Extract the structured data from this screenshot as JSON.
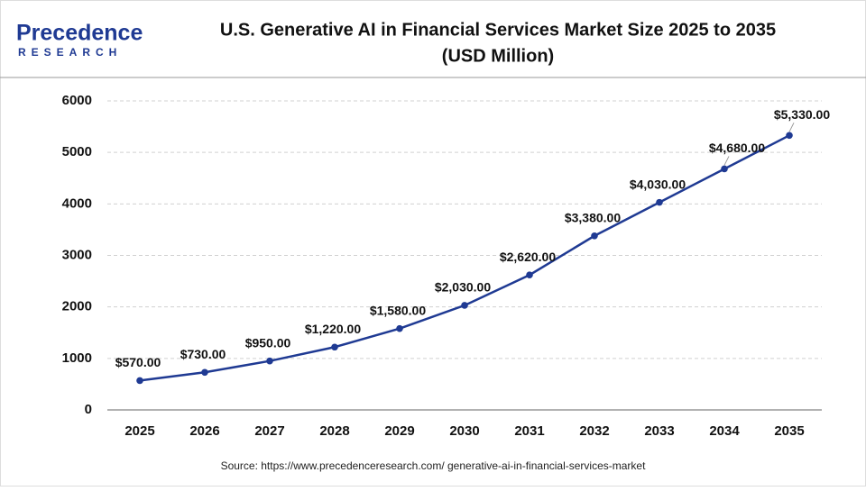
{
  "logo": {
    "name": "Precedence",
    "sub": "RESEARCH"
  },
  "chart_data": {
    "type": "line",
    "title": "U.S. Generative AI in Financial Services Market Size 2025 to 2035",
    "subtitle": "(USD Million)",
    "categories": [
      "2025",
      "2026",
      "2027",
      "2028",
      "2029",
      "2030",
      "2031",
      "2032",
      "2033",
      "2034",
      "2035"
    ],
    "values": [
      570,
      730,
      950,
      1220,
      1580,
      2030,
      2620,
      3380,
      4030,
      4680,
      5330
    ],
    "value_labels": [
      "$570.00",
      "$730.00",
      "$950.00",
      "$1,220.00",
      "$1,580.00",
      "$2,030.00",
      "$2,620.00",
      "$3,380.00",
      "$4,030.00",
      "$4,680.00",
      "$5,330.00"
    ],
    "color": "#1f3a93",
    "ylim": [
      0,
      6000
    ],
    "yticks": [
      0,
      1000,
      2000,
      3000,
      4000,
      5000,
      6000
    ],
    "grid": true,
    "source": "Source: https://www.precedenceresearch.com/ generative-ai-in-financial-services-market"
  }
}
